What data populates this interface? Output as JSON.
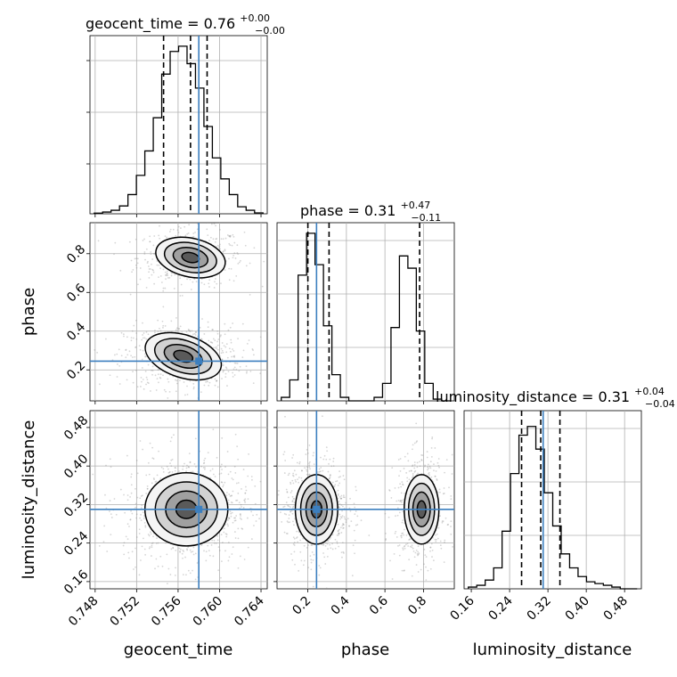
{
  "chart_data": {
    "type": "corner",
    "parameters": [
      {
        "name": "geocent_time",
        "truth": 0.758,
        "median": 0.7572,
        "q16": 0.7546,
        "q84": 0.7588,
        "title_value": "0.76",
        "title_plus": "+0.00",
        "title_minus": "-0.00"
      },
      {
        "name": "phase",
        "truth": 0.245,
        "median": 0.31,
        "q16": 0.2,
        "q84": 0.78,
        "title_value": "0.31",
        "title_plus": "+0.47",
        "title_minus": "-0.11"
      },
      {
        "name": "luminosity_distance",
        "truth": 0.31,
        "median": 0.305,
        "q16": 0.265,
        "q84": 0.345,
        "title_value": "0.31",
        "title_plus": "+0.04",
        "title_minus": "-0.04"
      }
    ],
    "titles": [
      {
        "text": "geocent_time = 0.76",
        "sup": "+0.00",
        "sub": "−0.00"
      },
      {
        "text": "phase = 0.31",
        "sup": "+0.47",
        "sub": "−0.11"
      },
      {
        "text": "luminosity_distance = 0.31",
        "sup": "+0.04",
        "sub": "−0.04"
      }
    ],
    "axis_labels": {
      "x": [
        "geocent_time",
        "phase",
        "luminosity_distance"
      ],
      "y": [
        "phase",
        "luminosity_distance"
      ]
    },
    "ticks": {
      "geocent_time": [
        "0.748",
        "0.752",
        "0.756",
        "0.760",
        "0.764"
      ],
      "phase": [
        "0.2",
        "0.4",
        "0.6",
        "0.8"
      ],
      "luminosity_distance": [
        "0.16",
        "0.24",
        "0.32",
        "0.40",
        "0.48"
      ]
    },
    "ranges": {
      "geocent_time": [
        0.7475,
        0.7646
      ],
      "phase": [
        0.04,
        0.96
      ],
      "luminosity_distance": [
        0.145,
        0.515
      ]
    },
    "hist_geocent_time": [
      0.004,
      0.01,
      0.02,
      0.045,
      0.11,
      0.22,
      0.36,
      0.55,
      0.8,
      0.93,
      0.96,
      0.86,
      0.72,
      0.5,
      0.32,
      0.2,
      0.11,
      0.04,
      0.02,
      0.005
    ],
    "hist_phase": [
      0.02,
      0.12,
      0.72,
      0.96,
      0.78,
      0.43,
      0.15,
      0.02,
      0.0,
      0.0,
      0.0,
      0.02,
      0.1,
      0.42,
      0.83,
      0.76,
      0.4,
      0.1,
      0.01,
      0.0
    ],
    "hist_luminosity_distance": [
      0.01,
      0.02,
      0.05,
      0.12,
      0.33,
      0.66,
      0.88,
      0.93,
      0.8,
      0.55,
      0.36,
      0.2,
      0.12,
      0.07,
      0.04,
      0.03,
      0.02,
      0.01,
      0.0,
      0.0
    ],
    "colors": {
      "truth": "#3c7fbf",
      "hist": "#000000",
      "grid": "#b0b0b0",
      "scatter": "#8a8a8a"
    },
    "grid": true
  }
}
